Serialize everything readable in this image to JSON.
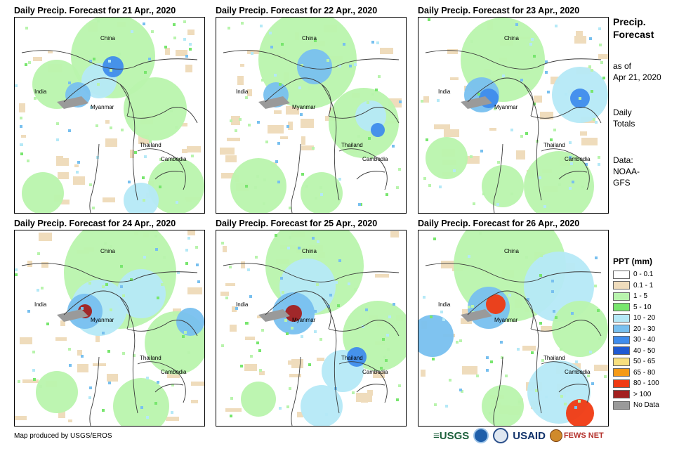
{
  "panels": [
    {
      "title": "Daily Precip. Forecast for 21 Apr., 2020"
    },
    {
      "title": "Daily Precip. Forecast for 22 Apr., 2020"
    },
    {
      "title": "Daily Precip. Forecast for 23 Apr., 2020"
    },
    {
      "title": "Daily Precip. Forecast for 24 Apr., 2020"
    },
    {
      "title": "Daily Precip. Forecast for 25 Apr., 2020"
    },
    {
      "title": "Daily Precip. Forecast for 26 Apr., 2020"
    }
  ],
  "map_labels": {
    "china": "China",
    "india": "India",
    "myanmar": "Myanmar",
    "thailand": "Thailand",
    "cambodia": "Cambodia"
  },
  "sidebar": {
    "title_line1": "Precip.",
    "title_line2": "Forecast",
    "asof_line1": "as of",
    "asof_line2": "Apr 21, 2020",
    "daily_line1": "Daily",
    "daily_line2": "Totals",
    "data_line1": "Data:",
    "data_line2": "NOAA-",
    "data_line3": "GFS"
  },
  "legend": {
    "title": "PPT (mm)",
    "items": [
      {
        "label": "0 - 0.1",
        "color": "#ffffff"
      },
      {
        "label": "0.1 - 1",
        "color": "#efdcbc"
      },
      {
        "label": "1 - 5",
        "color": "#b9f4ad"
      },
      {
        "label": "5 - 10",
        "color": "#78e66e"
      },
      {
        "label": "10 - 20",
        "color": "#b5e9f7"
      },
      {
        "label": "20 - 30",
        "color": "#78c0ef"
      },
      {
        "label": "30 - 40",
        "color": "#3f8cec"
      },
      {
        "label": "40 - 50",
        "color": "#1f5ad2"
      },
      {
        "label": "50 - 65",
        "color": "#f8e07e"
      },
      {
        "label": "65 - 80",
        "color": "#f59a16"
      },
      {
        "label": "80 - 100",
        "color": "#f03a12"
      },
      {
        "label": "> 100",
        "color": "#a3201f"
      },
      {
        "label": "No Data",
        "color": "#9a9a9a"
      }
    ]
  },
  "footer": {
    "credit": "Map produced by USGS/EROS",
    "logo_usgs": "≡USGS",
    "logo_usaid": "USAID",
    "logo_fews": "FEWS NET"
  }
}
